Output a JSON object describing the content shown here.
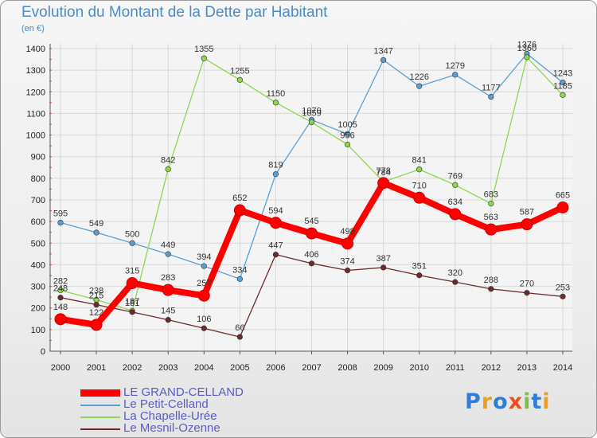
{
  "title": "Evolution du Montant de la Dette par Habitant",
  "unit": "(en €)",
  "logo": {
    "text": "Proxiti",
    "letter_colors": [
      "#2f7ed8",
      "#e8a020",
      "#2f7ed8",
      "#e85020",
      "#7cc242",
      "#2f7ed8",
      "#e8a020"
    ]
  },
  "chart_data": {
    "type": "line",
    "title": "Evolution du Montant de la Dette par Habitant",
    "ylabel": "(en €)",
    "xlabel": "",
    "ylim": [
      0,
      1400
    ],
    "yticks": [
      "0",
      "100",
      "200",
      "300",
      "400",
      "500",
      "600",
      "700",
      "800",
      "900",
      "1000",
      "1100",
      "1200",
      "1300",
      "1400"
    ],
    "x": [
      "2000",
      "2001",
      "2002",
      "2003",
      "2004",
      "2005",
      "2006",
      "2007",
      "2008",
      "2009",
      "2010",
      "2011",
      "2012",
      "2013",
      "2014"
    ],
    "legend_position": "bottom-left",
    "series": [
      {
        "name": "Le Petit-Celland",
        "color": "#5a9fd4",
        "values": [
          595,
          549,
          500,
          449,
          394,
          334,
          819,
          1070,
          1005,
          1347,
          1226,
          1279,
          1177,
          1376,
          1243
        ]
      },
      {
        "name": "La Chapelle-Urée",
        "color": "#8ed650",
        "values": [
          282,
          238,
          187,
          842,
          1355,
          1255,
          1150,
          1059,
          956,
          784,
          841,
          769,
          683,
          1360,
          1185
        ]
      },
      {
        "name": "Le Mesnil-Ozenne",
        "color": "#6d2b2b",
        "values": [
          248,
          215,
          181,
          145,
          106,
          66,
          447,
          406,
          374,
          387,
          351,
          320,
          288,
          270,
          253
        ]
      },
      {
        "name": "LE GRAND-CELLAND",
        "color": "#ff0000",
        "values": [
          148,
          122,
          315,
          283,
          257,
          652,
          594,
          545,
          498,
          778,
          710,
          634,
          563,
          587,
          665
        ]
      }
    ],
    "legend_order": [
      "LE GRAND-CELLAND",
      "Le Petit-Celland",
      "La Chapelle-Urée",
      "Le Mesnil-Ozenne"
    ]
  }
}
